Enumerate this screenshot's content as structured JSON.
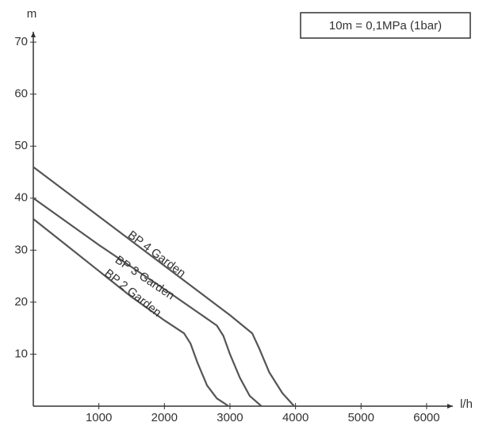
{
  "chart_data": {
    "type": "line",
    "y_label": "m",
    "x_label": "l/h",
    "annotation": "10m = 0,1MPa (1bar)",
    "xlim": [
      0,
      6400
    ],
    "ylim": [
      0,
      72
    ],
    "xticks": [
      1000,
      2000,
      3000,
      4000,
      5000,
      6000
    ],
    "yticks": [
      10,
      20,
      30,
      40,
      50,
      60,
      70
    ],
    "series": [
      {
        "name": "BP 4 Garden",
        "color": "#555555",
        "x": [
          0,
          1000,
          2000,
          3000,
          3340,
          3450,
          3600,
          3800,
          3980
        ],
        "values": [
          46,
          36.5,
          27,
          17.5,
          14,
          11,
          6.5,
          2.5,
          0
        ]
      },
      {
        "name": "BP 3 Garden",
        "color": "#555555",
        "x": [
          0,
          1000,
          2000,
          2800,
          2900,
          3000,
          3150,
          3300,
          3480
        ],
        "values": [
          40,
          31,
          22.5,
          15.5,
          13.5,
          10,
          5.5,
          2,
          0
        ]
      },
      {
        "name": "BP 2 Garden",
        "color": "#555555",
        "x": [
          0,
          500,
          1000,
          1500,
          2000,
          2300,
          2400,
          2500,
          2650,
          2800,
          2980
        ],
        "values": [
          36,
          31,
          26,
          21,
          16.5,
          14,
          12,
          8.5,
          4,
          1.5,
          0
        ]
      }
    ]
  }
}
